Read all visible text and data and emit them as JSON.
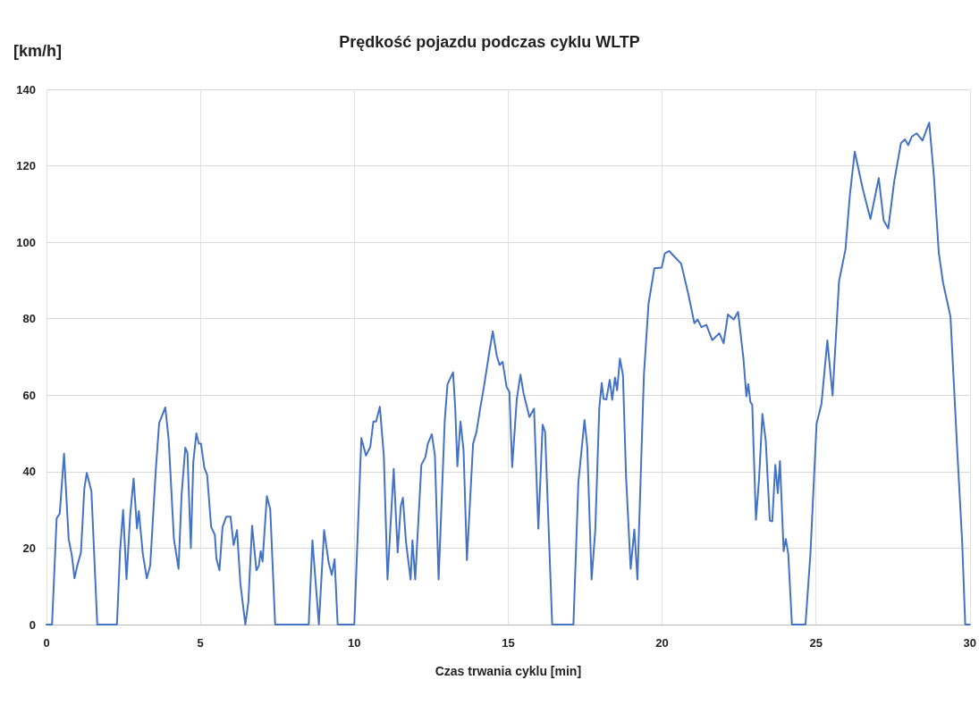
{
  "chart_data": {
    "type": "line",
    "title": "Prędkość pojazdu podczas cyklu WLTP",
    "xlabel": "Czas trwania cyklu [min]",
    "ylabel": "[km/h]",
    "xlim": [
      0,
      30
    ],
    "xticks": [
      0,
      5,
      10,
      15,
      20,
      25,
      30
    ],
    "ylim": [
      0,
      140
    ],
    "yticks": [
      0,
      20,
      40,
      60,
      80,
      100,
      120,
      140
    ],
    "grid": true,
    "marker": "none",
    "line_style": "solid",
    "series": [
      {
        "color": "#4472c4",
        "x": [
          0,
          0.18,
          0.33,
          0.43,
          0.57,
          0.72,
          0.83,
          0.91,
          1.0,
          1.12,
          1.23,
          1.31,
          1.46,
          1.65,
          2.29,
          2.39,
          2.49,
          2.6,
          2.72,
          2.83,
          2.94,
          3.0,
          3.13,
          3.26,
          3.37,
          3.55,
          3.66,
          3.86,
          3.97,
          4.14,
          4.29,
          4.39,
          4.51,
          4.58,
          4.69,
          4.77,
          4.87,
          4.95,
          5.02,
          5.13,
          5.22,
          5.35,
          5.47,
          5.52,
          5.62,
          5.72,
          5.84,
          5.98,
          6.08,
          6.19,
          6.3,
          6.46,
          6.56,
          6.68,
          6.82,
          6.9,
          6.96,
          7.02,
          7.16,
          7.27,
          7.43,
          8.52,
          8.64,
          8.85,
          9.02,
          9.17,
          9.27,
          9.36,
          9.46,
          10.0,
          10.23,
          10.38,
          10.52,
          10.62,
          10.71,
          10.83,
          10.96,
          11.08,
          11.28,
          11.41,
          11.51,
          11.58,
          11.68,
          11.83,
          11.89,
          11.98,
          12.18,
          12.31,
          12.39,
          12.52,
          12.62,
          12.74,
          12.94,
          13.03,
          13.21,
          13.28,
          13.35,
          13.45,
          13.55,
          13.66,
          13.86,
          13.97,
          14.1,
          14.21,
          14.39,
          14.5,
          14.63,
          14.72,
          14.82,
          14.95,
          15.04,
          15.13,
          15.28,
          15.4,
          15.5,
          15.69,
          15.84,
          15.98,
          16.12,
          16.2,
          16.43,
          17.12,
          17.28,
          17.48,
          17.57,
          17.71,
          17.83,
          17.96,
          18.04,
          18.1,
          18.19,
          18.3,
          18.38,
          18.47,
          18.54,
          18.63,
          18.73,
          18.83,
          18.98,
          19.1,
          19.2,
          19.41,
          19.56,
          19.75,
          19.99,
          20.09,
          20.23,
          20.43,
          20.62,
          20.86,
          21.05,
          21.15,
          21.28,
          21.44,
          21.63,
          21.86,
          22.0,
          22.14,
          22.33,
          22.47,
          22.64,
          22.74,
          22.8,
          22.87,
          22.93,
          23.05,
          23.15,
          23.26,
          23.37,
          23.5,
          23.58,
          23.68,
          23.76,
          23.83,
          23.95,
          24.02,
          24.1,
          24.22,
          24.66,
          24.82,
          25.02,
          25.18,
          25.37,
          25.54,
          25.75,
          25.96,
          26.1,
          26.26,
          26.52,
          26.77,
          27.04,
          27.2,
          27.35,
          27.54,
          27.76,
          27.89,
          28.0,
          28.11,
          28.27,
          28.46,
          28.68,
          28.83,
          28.99,
          29.13,
          29.37,
          29.58,
          29.75,
          29.85,
          30
        ],
        "values": [
          0,
          0,
          27.8,
          29,
          44.7,
          22.4,
          17.8,
          12.1,
          15.4,
          18.9,
          35.6,
          39.7,
          34.8,
          0,
          0,
          19.2,
          30,
          11.9,
          28.6,
          38.2,
          25.1,
          29.7,
          18.5,
          12.1,
          15.4,
          40.3,
          52.7,
          56.8,
          48.4,
          22.4,
          14.6,
          34,
          46.3,
          44.9,
          20,
          42.6,
          50,
          47.3,
          47.3,
          41,
          39.1,
          25.5,
          23.5,
          17.3,
          14.2,
          25.5,
          28.2,
          28.2,
          20.8,
          24.7,
          10.7,
          0,
          6,
          25.9,
          14.2,
          15.4,
          19.2,
          16.5,
          33.6,
          30.1,
          0,
          0,
          22,
          0,
          24.7,
          16.1,
          13,
          17.1,
          0,
          0,
          48.8,
          44.2,
          46.5,
          53.1,
          53.1,
          57,
          44.2,
          11.8,
          40.7,
          18.9,
          30.9,
          33.2,
          21.6,
          11.8,
          22,
          11.8,
          41.8,
          43.8,
          47.3,
          49.8,
          44.2,
          11.8,
          53.5,
          62.9,
          66,
          56.6,
          41.4,
          53.1,
          45.7,
          16.9,
          47.3,
          50.4,
          57,
          62.1,
          71.4,
          76.7,
          70.3,
          67.9,
          68.7,
          62.1,
          60.9,
          41.2,
          59,
          65.4,
          60.5,
          54.3,
          56.5,
          25.1,
          52.3,
          50.4,
          0,
          0,
          37.1,
          53.5,
          46.5,
          11.8,
          24.7,
          56.6,
          63.2,
          59,
          58.9,
          64,
          58.8,
          64.6,
          61.3,
          69.6,
          65.2,
          38.7,
          14.6,
          24.9,
          11.8,
          65.2,
          83.9,
          93.2,
          93.4,
          97.1,
          97.7,
          96,
          94.4,
          86.2,
          78.8,
          79.8,
          77.8,
          78.4,
          74.4,
          76.2,
          73.6,
          81.1,
          79.8,
          81.8,
          69.9,
          59.7,
          62.9,
          58.2,
          57.5,
          27.4,
          37.9,
          55.1,
          48,
          27.2,
          27,
          41.8,
          34.4,
          42.8,
          19.2,
          22.4,
          18.5,
          0,
          0,
          18.5,
          52.5,
          57.8,
          74.3,
          59.9,
          89.8,
          98.2,
          112.2,
          123.7,
          114,
          106.1,
          116.8,
          105.7,
          103.6,
          115.8,
          125.9,
          126.9,
          125.4,
          127.6,
          128.5,
          126.6,
          131.3,
          117.5,
          97.3,
          89.4,
          80.6,
          47.2,
          21.7,
          0,
          0
        ]
      }
    ]
  }
}
